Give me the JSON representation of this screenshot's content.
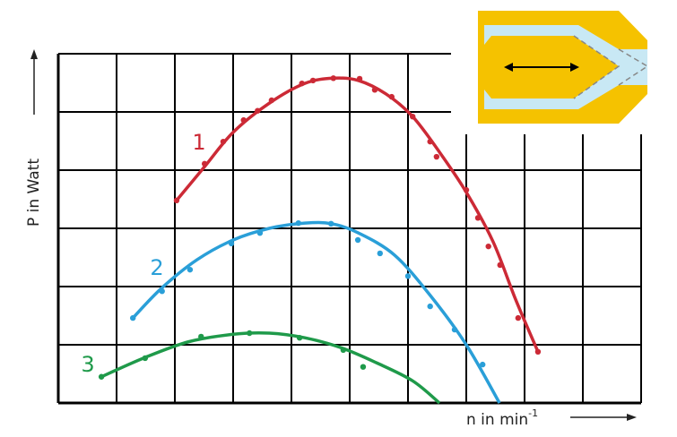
{
  "chart_data": {
    "type": "scatter",
    "y_label": "P in Watt",
    "x_label": "n in min",
    "x_label_sup": "-1",
    "xlim": [
      0,
      10
    ],
    "ylim": [
      0,
      6
    ],
    "xticks": [
      0,
      1,
      2,
      3,
      4,
      5,
      6,
      7,
      8,
      9,
      10
    ],
    "yticks": [
      0,
      1,
      2,
      3,
      4,
      5,
      6
    ],
    "grid": true,
    "series": [
      {
        "name": "1",
        "color": "#cc2a36",
        "x": [
          2.03,
          2.51,
          2.83,
          3.18,
          3.42,
          3.66,
          4.18,
          4.37,
          4.72,
          5.17,
          5.43,
          5.72,
          6.08,
          6.38,
          6.49,
          7.0,
          7.2,
          7.38,
          7.58,
          7.89,
          8.23
        ],
        "values": [
          3.48,
          4.11,
          4.49,
          4.86,
          5.02,
          5.2,
          5.49,
          5.54,
          5.58,
          5.57,
          5.38,
          5.26,
          4.92,
          4.49,
          4.23,
          3.66,
          3.18,
          2.69,
          2.37,
          1.46,
          0.88
        ],
        "fit_x": [
          2.03,
          2.51,
          3.0,
          3.62,
          4.23,
          4.72,
          5.15,
          5.62,
          6.08,
          6.54,
          7.0,
          7.46,
          7.85,
          8.23
        ],
        "fit_values": [
          3.48,
          4.06,
          4.65,
          5.15,
          5.49,
          5.58,
          5.54,
          5.31,
          4.92,
          4.31,
          3.62,
          2.77,
          1.77,
          0.88
        ]
      },
      {
        "name": "2",
        "color": "#2a9fd8",
        "x": [
          1.28,
          1.78,
          2.26,
          2.97,
          3.46,
          4.12,
          4.68,
          5.14,
          5.52,
          6.0,
          6.38,
          6.8,
          7.28
        ],
        "values": [
          1.46,
          1.92,
          2.29,
          2.74,
          2.92,
          3.09,
          3.08,
          2.8,
          2.57,
          2.18,
          1.66,
          1.26,
          0.66
        ],
        "fit_x": [
          1.28,
          1.77,
          2.38,
          3.0,
          3.62,
          4.23,
          4.69,
          5.15,
          5.77,
          6.38,
          7.0,
          7.57
        ],
        "fit_values": [
          1.46,
          1.97,
          2.46,
          2.8,
          3.0,
          3.09,
          3.08,
          2.92,
          2.54,
          1.85,
          1.0,
          0
        ]
      },
      {
        "name": "3",
        "color": "#1f9a4a",
        "x": [
          0.74,
          1.49,
          2.45,
          3.28,
          4.14,
          4.89,
          5.23
        ],
        "values": [
          0.45,
          0.77,
          1.14,
          1.2,
          1.12,
          0.91,
          0.62
        ],
        "fit_x": [
          0.74,
          1.46,
          2.23,
          3.0,
          3.62,
          4.23,
          4.85,
          5.46,
          6.08,
          6.54
        ],
        "fit_values": [
          0.45,
          0.77,
          1.05,
          1.18,
          1.2,
          1.12,
          0.95,
          0.69,
          0.38,
          0
        ]
      }
    ]
  }
}
